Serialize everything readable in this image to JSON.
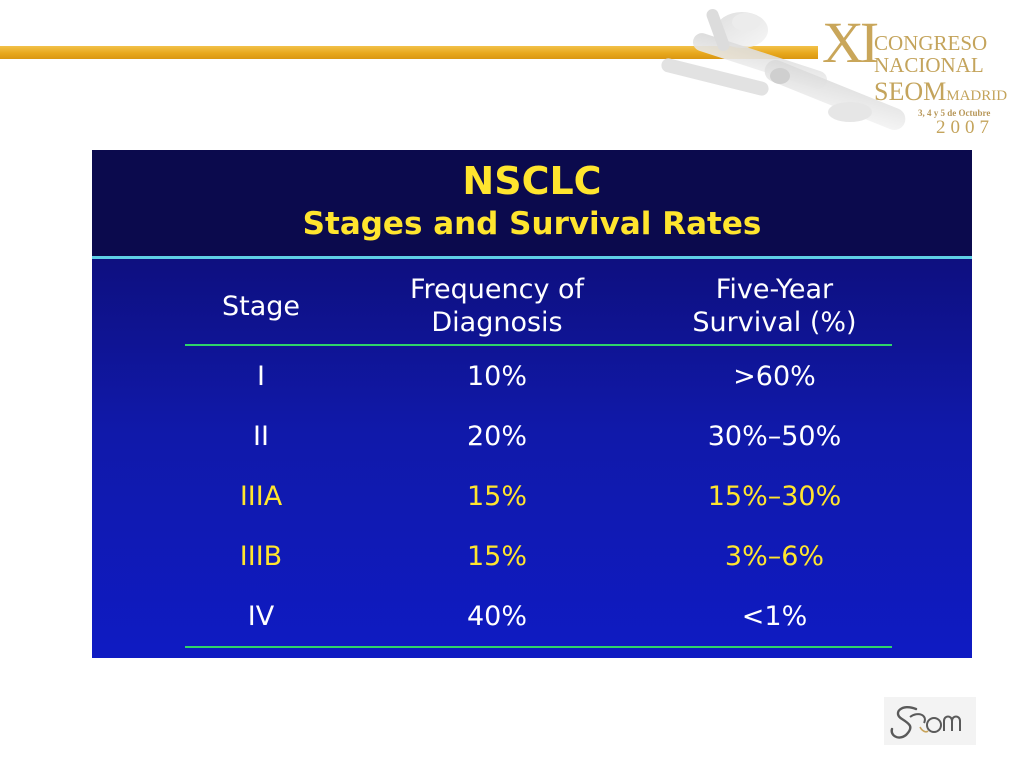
{
  "congress_logo": {
    "numeral": "XI",
    "line1": "CONGRESO",
    "line2": "NACIONAL",
    "org": "SEOM",
    "city": "MADRID",
    "dates": "3, 4 y 5 de Octubre",
    "year": "2007"
  },
  "slide": {
    "title": "NSCLC",
    "subtitle": "Stages and Survival Rates",
    "columns": [
      "Stage",
      "Frequency of\nDiagnosis",
      "Five-Year\nSurvival (%)"
    ],
    "rows": [
      {
        "stage": "I",
        "frequency": "10%",
        "survival": ">60%",
        "highlight": false
      },
      {
        "stage": "II",
        "frequency": "20%",
        "survival": "30%–50%",
        "highlight": false
      },
      {
        "stage": "IIIA",
        "frequency": "15%",
        "survival": "15%–30%",
        "highlight": true
      },
      {
        "stage": "IIIB",
        "frequency": "15%",
        "survival": "3%–6%",
        "highlight": true
      },
      {
        "stage": "IV",
        "frequency": "40%",
        "survival": "<1%",
        "highlight": false
      }
    ]
  },
  "footer_logo": {
    "text": "SEOM"
  },
  "colors": {
    "title": "#ffe52e",
    "header_bg": "#0b0a4d",
    "rule": "#2fd46a",
    "accent_bar": "#e8a81d",
    "logo_gold": "#c4a45c"
  }
}
